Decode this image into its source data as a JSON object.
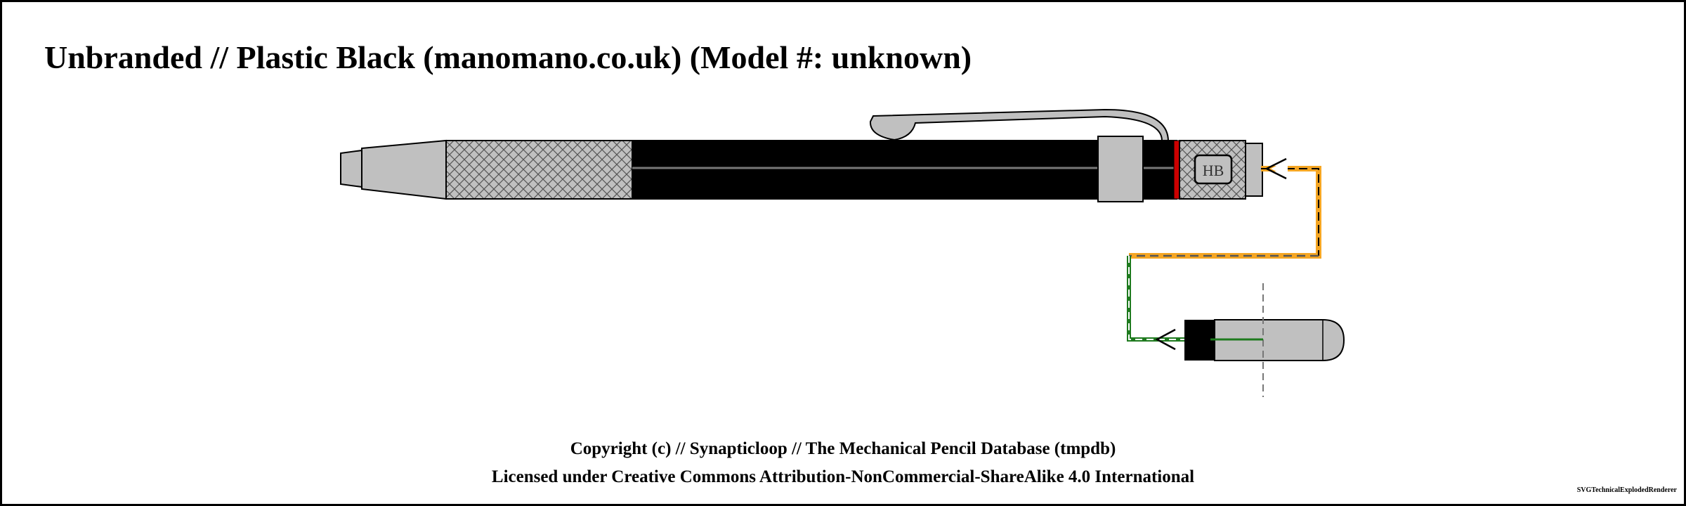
{
  "title": "Unbranded // Plastic Black (manomano.co.uk) (Model #: unknown)",
  "footer": {
    "copyright": "Copyright (c) // Synapticloop // The Mechanical Pencil Database (tmpdb)",
    "license": "Licensed under Creative Commons Attribution-NonCommercial-ShareAlike 4.0 International"
  },
  "renderer_credit": "SVGTechnicalExplodedRenderer",
  "pencil": {
    "lead_grade": "HB",
    "body_color": "#000000",
    "metal_color": "#c0c0c0",
    "grip_pattern": "diamond-knurl",
    "accent_ring_color": "#cc0000",
    "end_cap_color": "#000000"
  },
  "connectors": {
    "upper_color": "#f5a623",
    "lower_color": "#1e7a1e"
  }
}
